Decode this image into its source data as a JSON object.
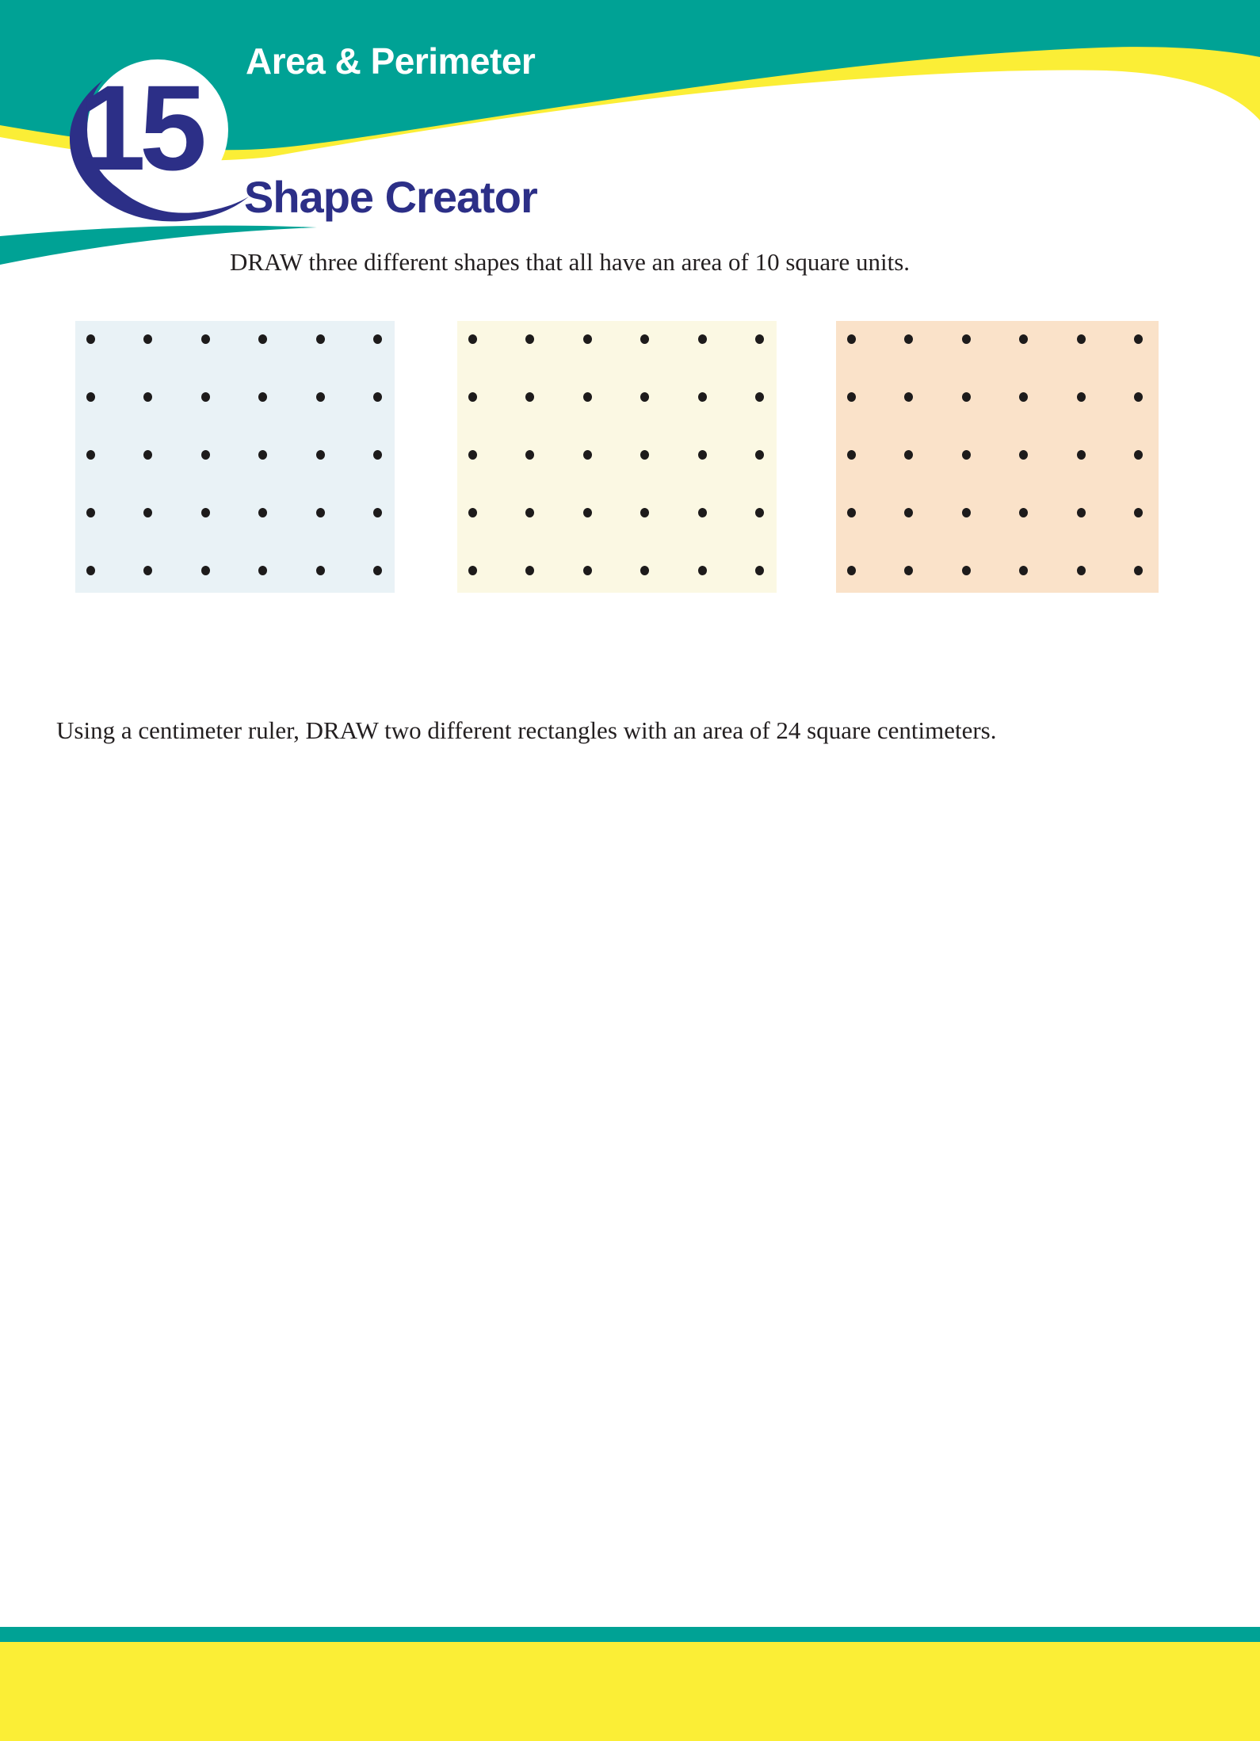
{
  "header": {
    "lesson_number": "15",
    "unit_title": "Area & Perimeter",
    "lesson_title": "Shape Creator"
  },
  "main": {
    "instruction_1": "DRAW three different shapes that all have an area of 10 square units.",
    "instruction_2": "Using a centimeter ruler, DRAW two different rectangles with an area of 24 square centimeters."
  },
  "grids": [
    {
      "name": "blue-dot-grid",
      "bg": "#E9F2F6",
      "rows": 5,
      "cols": 6
    },
    {
      "name": "cream-dot-grid",
      "bg": "#FBF8E3",
      "rows": 5,
      "cols": 6
    },
    {
      "name": "peach-dot-grid",
      "bg": "#FAE2C9",
      "rows": 5,
      "cols": 6
    }
  ],
  "colors": {
    "teal": "#00A295",
    "yellow": "#FBEE36",
    "navy": "#2C2F87",
    "ink": "#231F20",
    "dot": "#1D1B1B",
    "paper": "#FFFFFF"
  }
}
